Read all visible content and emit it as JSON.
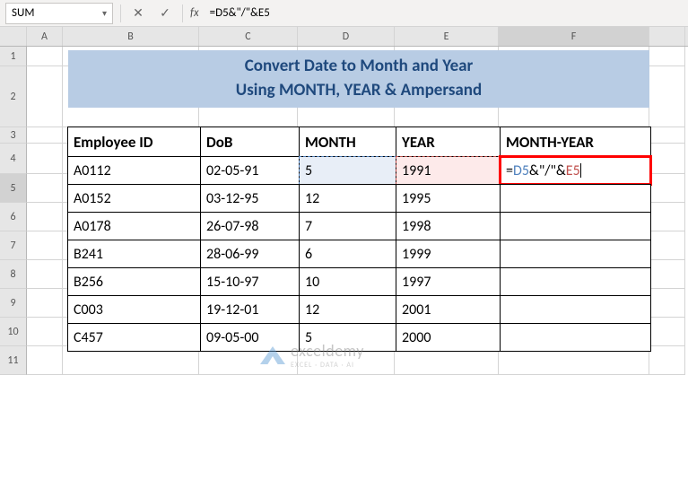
{
  "name_box": "SUM",
  "formula_bar": "=D5&\"/\"&E5",
  "col_labels": [
    "",
    "A",
    "B",
    "C",
    "D",
    "E",
    "F",
    ""
  ],
  "row_labels": [
    "1",
    "2",
    "3",
    "4",
    "5",
    "6",
    "7",
    "8",
    "9",
    "10",
    "11"
  ],
  "title_line1": "Convert Date to Month and Year",
  "title_line2": "Using MONTH, YEAR & Ampersand",
  "headers": {
    "b": "Employee ID",
    "c": "DoB",
    "d": "MONTH",
    "e": "YEAR",
    "f": "MONTH-YEAR"
  },
  "formula_tokens": {
    "eq": "=",
    "d5": "D5",
    "amp1": "&",
    "str": "\"/\"",
    "amp2": "&",
    "e5": "E5"
  },
  "rows": [
    {
      "b": "A0112",
      "c": "02-05-91",
      "d": "5",
      "e": "1991",
      "f_formula": true
    },
    {
      "b": "A0152",
      "c": "03-12-95",
      "d": "12",
      "e": "1995",
      "f": ""
    },
    {
      "b": "A0178",
      "c": "26-07-98",
      "d": "7",
      "e": "1998",
      "f": ""
    },
    {
      "b": "B241",
      "c": "28-06-99",
      "d": "6",
      "e": "1999",
      "f": ""
    },
    {
      "b": "B256",
      "c": "15-10-97",
      "d": "10",
      "e": "1997",
      "f": ""
    },
    {
      "b": "C003",
      "c": "19-12-01",
      "d": "12",
      "e": "2001",
      "f": ""
    },
    {
      "b": "C457",
      "c": "09-05-00",
      "d": "5",
      "e": "2000",
      "f": ""
    }
  ],
  "watermark": {
    "brand": "exceldemy",
    "sub": "EXCEL · DATA · AI"
  },
  "colors": {
    "banner_bg": "#b8cce4",
    "banner_text": "#1f497d",
    "ref_d5_border": "#4f81bd",
    "ref_e5_border": "#c0504d",
    "active_outline": "#ff0000"
  },
  "row_heights": {
    "r1": 22,
    "r2": 68,
    "r3": 18,
    "r4": 34,
    "data": 32
  }
}
